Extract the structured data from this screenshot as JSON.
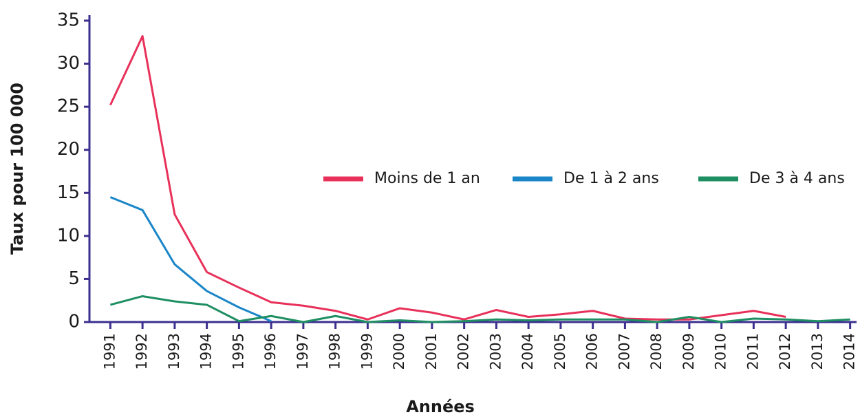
{
  "chart_data": {
    "type": "line",
    "x_label": "Années",
    "y_label": "Taux pour 100 000",
    "x": [
      1991,
      1992,
      1993,
      1994,
      1995,
      1996,
      1997,
      1998,
      1999,
      2000,
      2001,
      2002,
      2003,
      2004,
      2005,
      2006,
      2007,
      2008,
      2009,
      2010,
      2011,
      2012,
      2013,
      2014
    ],
    "xlim": [
      1990.35,
      2014.2
    ],
    "xticks": [
      1991,
      1992,
      1993,
      1994,
      1995,
      1996,
      1997,
      1998,
      1999,
      2000,
      2001,
      2002,
      2003,
      2004,
      2005,
      2006,
      2007,
      2008,
      2009,
      2010,
      2011,
      2012,
      2013,
      2014
    ],
    "ylim": [
      0,
      35
    ],
    "yticks": [
      0,
      5,
      10,
      15,
      20,
      25,
      30,
      35
    ],
    "legend": "right",
    "series": [
      {
        "name": "Moins de 1 an",
        "color": "#e8315a",
        "values": [
          25.2,
          33.2,
          12.5,
          5.8,
          4.0,
          2.3,
          1.9,
          1.3,
          0.3,
          1.6,
          1.1,
          0.3,
          1.4,
          0.6,
          0.9,
          1.3,
          0.4,
          0.3,
          0.3,
          0.8,
          1.3,
          0.6,
          null,
          null
        ]
      },
      {
        "name": "De 1 à 2 ans",
        "color": "#1a86c8",
        "values": [
          14.5,
          13.0,
          6.7,
          3.6,
          1.7,
          0.1,
          null,
          null,
          null,
          null,
          null,
          null,
          null,
          null,
          null,
          null,
          null,
          null,
          null,
          null,
          null,
          null,
          null,
          null
        ]
      },
      {
        "name": "De 3 à 4 ans",
        "color": "#1e8f62",
        "values": [
          2.0,
          3.0,
          2.4,
          2.0,
          0.1,
          0.7,
          0,
          0.7,
          0,
          0.2,
          0,
          0.1,
          0.3,
          0.2,
          0.3,
          0.3,
          0.3,
          0,
          0.6,
          0,
          0.4,
          0.3,
          0.1,
          0.3
        ]
      }
    ]
  }
}
